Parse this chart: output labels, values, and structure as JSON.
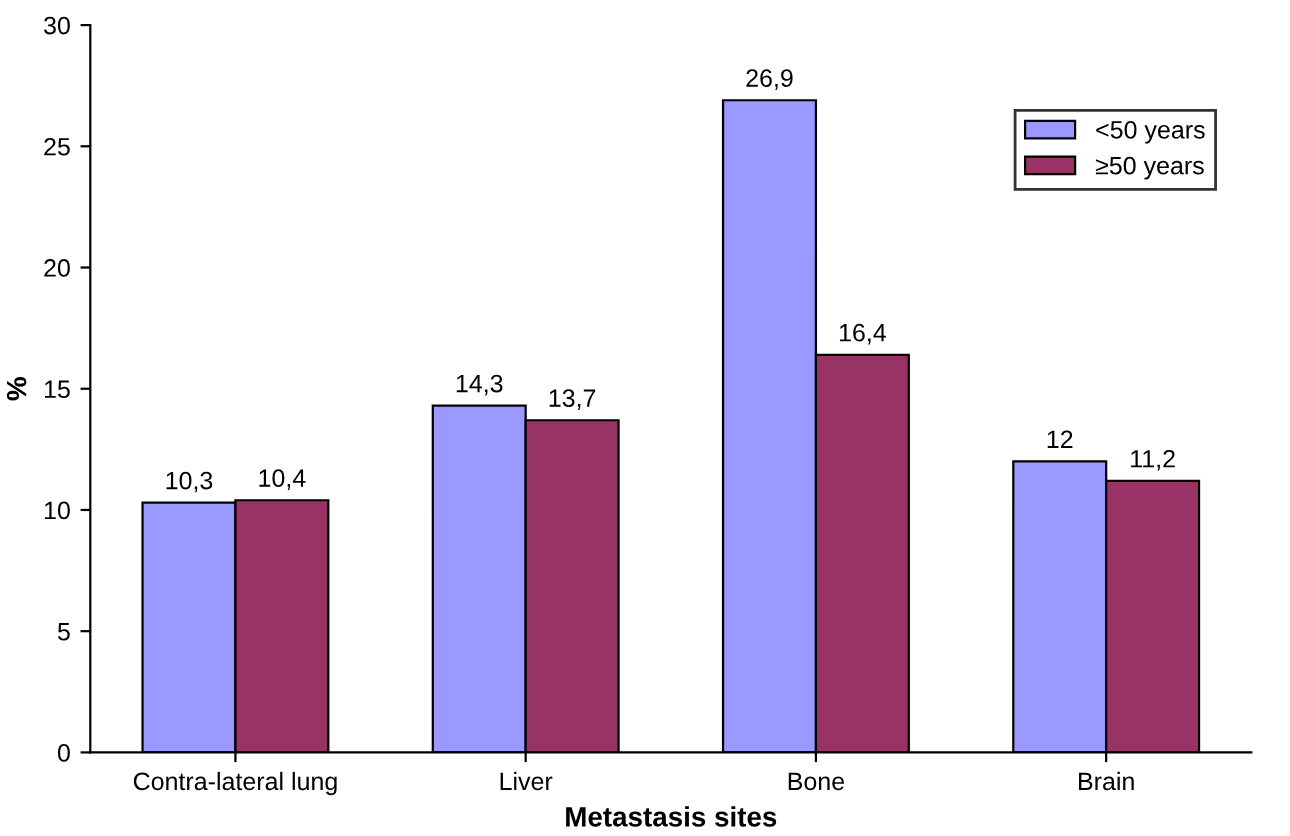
{
  "chart_data": {
    "type": "bar",
    "xlabel": "Metastasis sites",
    "ylabel": "%",
    "categories": [
      "Contra-lateral lung",
      "Liver",
      "Bone",
      "Brain"
    ],
    "series": [
      {
        "name": "<50 years",
        "color": "#9999ff",
        "values": [
          10.3,
          14.3,
          26.9,
          12
        ],
        "value_labels": [
          "10,3",
          "14,3",
          "26,9",
          "12"
        ]
      },
      {
        "name": "≥50 years",
        "color": "#993366",
        "values": [
          10.4,
          13.7,
          16.4,
          11.2
        ],
        "value_labels": [
          "10,4",
          "13,7",
          "16,4",
          "11,2"
        ]
      }
    ],
    "ylim": [
      0,
      30
    ],
    "yticks": [
      0,
      5,
      10,
      15,
      20,
      25,
      30
    ],
    "grid": false,
    "legend": "top right"
  }
}
